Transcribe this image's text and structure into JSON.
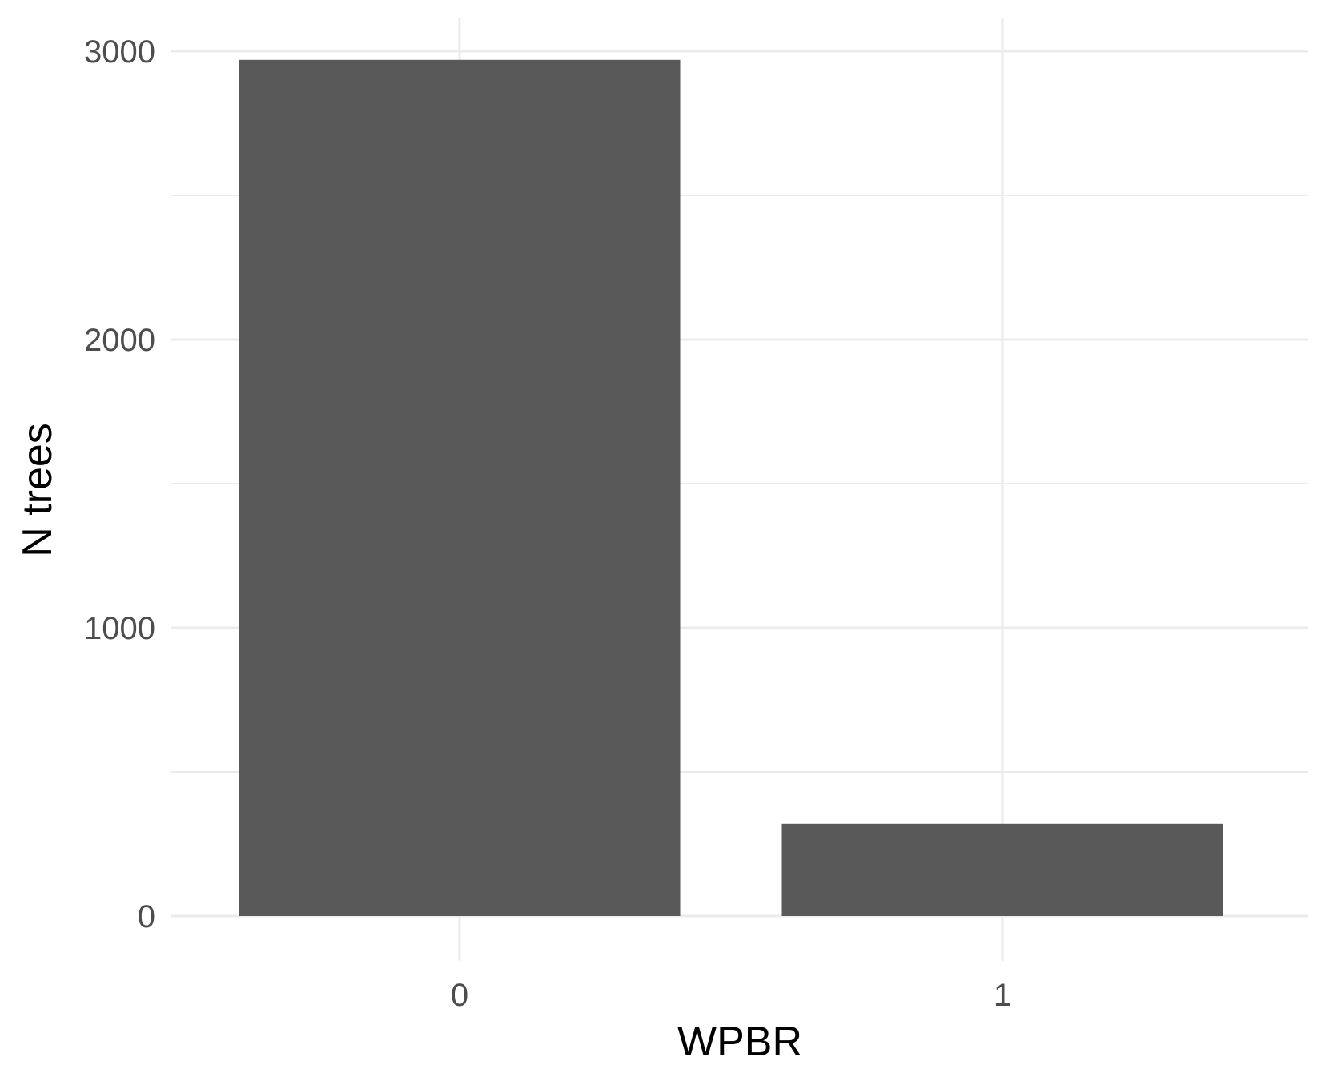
{
  "chart_data": {
    "type": "bar",
    "categories": [
      "0",
      "1"
    ],
    "values": [
      2970,
      320
    ],
    "title": "",
    "xlabel": "WPBR",
    "ylabel": "N trees",
    "ylim": [
      0,
      3000
    ],
    "y_ticks": [
      "0",
      "1000",
      "2000",
      "3000"
    ],
    "grid": true,
    "legend": "none",
    "colors": {
      "bar": "#595959",
      "grid": "#ebebeb",
      "tick_text": "#4d4d4d"
    }
  }
}
